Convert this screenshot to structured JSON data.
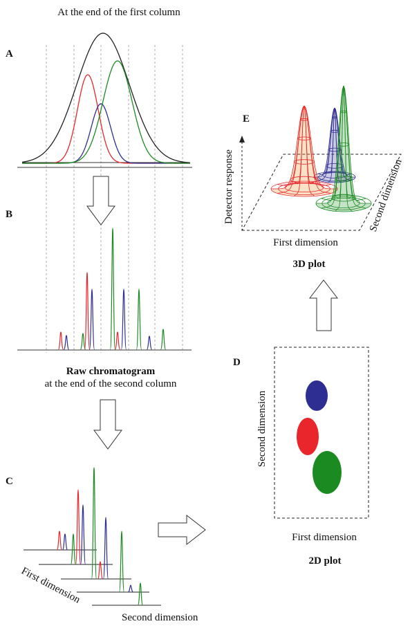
{
  "colors": {
    "red": "#e8262b",
    "blue": "#2e2e92",
    "green": "#1b8a20",
    "black": "#222222",
    "orange": "#f08a1e"
  },
  "panel_a": {
    "letter": "A",
    "title": "At the end of the first column"
  },
  "panel_b": {
    "letter": "B",
    "caption_bold": "Raw chromatogram",
    "caption": "at the end of the second column"
  },
  "panel_c": {
    "letter": "C",
    "axis_first": "First dimension",
    "axis_second": "Second dimension"
  },
  "panel_d": {
    "letter": "D",
    "axis_y": "Second dimension",
    "axis_x": "First dimension",
    "caption": "2D plot"
  },
  "panel_e": {
    "letter": "E",
    "axis_y": "Detector response",
    "axis_x": "First dimension",
    "axis_z": "Second dimension",
    "caption": "3D plot"
  }
}
